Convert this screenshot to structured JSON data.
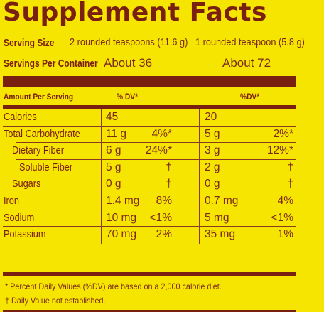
{
  "title": "Supplement Facts",
  "serving_size": {
    "label": "Serving Size",
    "col1": "2 rounded teaspoons (11.6 g)",
    "col2": "1 rounded teaspoon (5.8 g)"
  },
  "servings_per_container": {
    "label": "Servings Per Container",
    "col1": "About 36",
    "col2": "About 72"
  },
  "header": {
    "amount_label": "Amount Per Serving",
    "dv1": "% DV*",
    "dv2": "%DV*"
  },
  "rows": [
    {
      "label": "Calories",
      "a1": "45",
      "d1": "",
      "a2": "20",
      "d2": ""
    },
    {
      "label": "Total Carbohydrate",
      "a1": "11 g",
      "d1": "4%*",
      "a2": "5 g",
      "d2": "2%*"
    },
    {
      "label": "Dietary Fiber",
      "a1": "6 g",
      "d1": "24%*",
      "a2": "3 g",
      "d2": "12%*"
    },
    {
      "label": "Soluble Fiber",
      "a1": "5 g",
      "d1": "†",
      "a2": "2 g",
      "d2": "†"
    },
    {
      "label": "Sugars",
      "a1": "0 g",
      "d1": "†",
      "a2": "0 g",
      "d2": "†"
    },
    {
      "label": "Iron",
      "a1": "1.4 mg",
      "d1": "8%",
      "a2": "0.7 mg",
      "d2": "4%"
    },
    {
      "label": "Sodium",
      "a1": "10 mg",
      "d1": "<1%",
      "a2": "5 mg",
      "d2": "<1%"
    },
    {
      "label": "Potassium",
      "a1": "70 mg",
      "d1": "2%",
      "a2": "35 mg",
      "d2": "1%"
    }
  ],
  "footnotes": {
    "dv_note": "* Percent Daily Values (%DV) are based on a 2,000 calorie diet.",
    "dagger_note": "† Daily Value not established."
  },
  "colors": {
    "background": "#f6e500",
    "text": "#7a2010"
  }
}
